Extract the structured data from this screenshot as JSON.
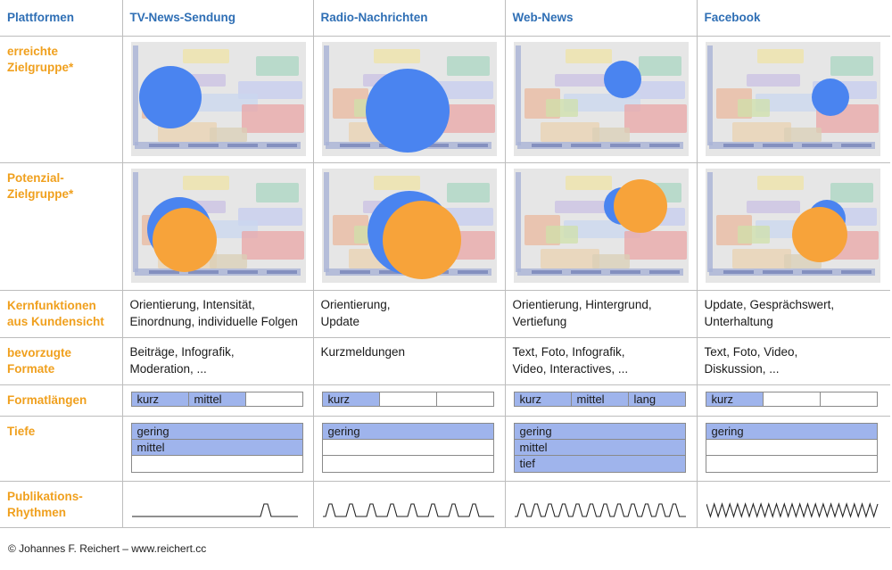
{
  "header": {
    "corner": "Plattformen",
    "platforms": [
      "TV-News-Sendung",
      "Radio-Nachrichten",
      "Web-News",
      "Facebook"
    ]
  },
  "rows": {
    "reach": "erreichte Zielgruppe*",
    "potential": "Potenzial-Zielgruppe*",
    "functions": "Kernfunktionen aus Kundensicht",
    "formats": "bevorzugte Formate",
    "lengths": "Formatlängen",
    "depth": "Tiefe",
    "rhythm": "Publikations-Rhythmen"
  },
  "functions_lines": [
    [
      "Orientierung, Intensität,",
      "Einordnung, individuelle Folgen"
    ],
    [
      "Orientierung,",
      "Update"
    ],
    [
      "Orientierung, Hintergrund,",
      "Vertiefung"
    ],
    [
      "Update, Gesprächswert,",
      "Unterhaltung"
    ]
  ],
  "formats_lines": [
    [
      "Beiträge, Infografik,",
      "Moderation, ..."
    ],
    [
      "Kurzmeldungen",
      ""
    ],
    [
      "Text, Foto, Infografik,",
      "Video, Interactives, ..."
    ],
    [
      "Text, Foto, Video,",
      "Diskussion, ..."
    ]
  ],
  "length_labels": [
    "kurz",
    "mittel",
    "lang"
  ],
  "length_active": [
    [
      true,
      true,
      false
    ],
    [
      true,
      false,
      false
    ],
    [
      true,
      true,
      true
    ],
    [
      true,
      false,
      false
    ]
  ],
  "depth_labels": [
    "gering",
    "mittel",
    "tief"
  ],
  "depth_active": [
    [
      true,
      true,
      false
    ],
    [
      true,
      false,
      false
    ],
    [
      true,
      true,
      true
    ],
    [
      true,
      false,
      false
    ]
  ],
  "rhythm_pattern": [
    "single-peak",
    "regular-sparse",
    "regular-dense",
    "continuous"
  ],
  "colors": {
    "header": "#2f6fb5",
    "label": "#f0a01e",
    "reach": "#4a84f0",
    "potential": "#f7a33a",
    "active": "#9fb4ec"
  },
  "footer": "© Johannes F. Reichert – www.reichert.cc"
}
